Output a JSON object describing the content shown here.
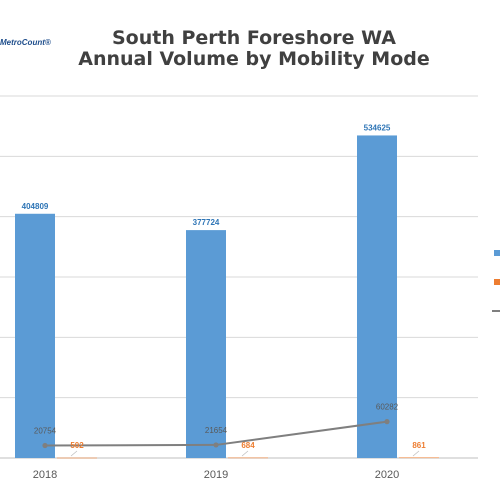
{
  "logo_text": "MetroCount®",
  "chart_data": {
    "type": "bar",
    "title_line1": "South Perth Foreshore WA",
    "title_line2": "Annual Volume by Mobility Mode",
    "categories": [
      "2018",
      "2019",
      "2020"
    ],
    "series": [
      {
        "kind": "bar",
        "color": "#5b9bd5",
        "values": [
          404809,
          377724,
          534625
        ],
        "labels": [
          "404809",
          "377724",
          "534625"
        ]
      },
      {
        "kind": "bar",
        "color": "#ed7d31",
        "values": [
          502,
          684,
          861
        ],
        "labels": [
          "502",
          "684",
          "861"
        ]
      },
      {
        "kind": "line",
        "color": "#7f7f7f",
        "values": [
          20754,
          21654,
          60282
        ],
        "labels": [
          "20754",
          "21654",
          "60282"
        ]
      }
    ],
    "ylim": [
      0,
      600000
    ],
    "gridlines": true,
    "legend": "right"
  }
}
